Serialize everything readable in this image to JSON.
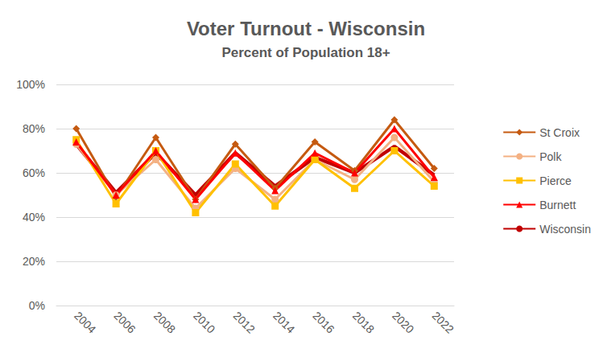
{
  "chart_data": {
    "type": "line",
    "title": "Voter Turnout - Wisconsin",
    "subtitle": "Percent of Population 18+",
    "categories": [
      "2004",
      "2006",
      "2008",
      "2010",
      "2012",
      "2014",
      "2016",
      "2018",
      "2020",
      "2022"
    ],
    "series": [
      {
        "name": "St Croix",
        "color": "#c55a11",
        "marker": "diamond",
        "values": [
          80,
          49,
          76,
          48,
          73,
          53,
          74,
          61,
          84,
          62
        ]
      },
      {
        "name": "Polk",
        "color": "#f4b183",
        "marker": "circle",
        "values": [
          73,
          50,
          66,
          44,
          62,
          48,
          66,
          57,
          76,
          56
        ]
      },
      {
        "name": "Pierce",
        "color": "#ffc000",
        "marker": "square",
        "values": [
          75,
          46,
          70,
          42,
          64,
          45,
          66,
          53,
          70,
          54
        ]
      },
      {
        "name": "Burnett",
        "color": "#ff0000",
        "marker": "triangle",
        "values": [
          74,
          50,
          70,
          48,
          69,
          52,
          69,
          60,
          80,
          58
        ]
      },
      {
        "name": "Wisconsin",
        "color": "#c00000",
        "marker": "none",
        "values": [
          73,
          51,
          69,
          50,
          69,
          54,
          67,
          60,
          72,
          59
        ]
      }
    ],
    "ylim": [
      0,
      100
    ],
    "yticks": [
      {
        "value": 0,
        "label": "0%"
      },
      {
        "value": 20,
        "label": "20%"
      },
      {
        "value": 40,
        "label": "40%"
      },
      {
        "value": 60,
        "label": "60%"
      },
      {
        "value": 80,
        "label": "80%"
      },
      {
        "value": 100,
        "label": "100%"
      }
    ],
    "grid": true,
    "legend": "right"
  }
}
